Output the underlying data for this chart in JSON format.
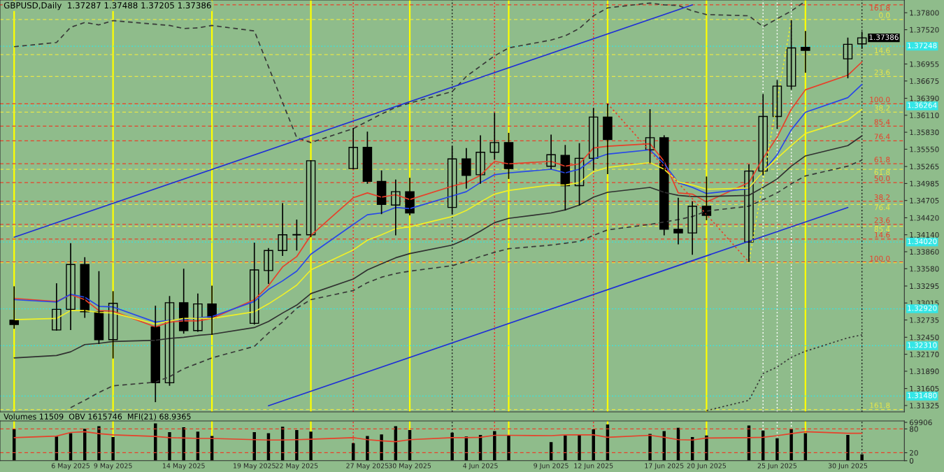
{
  "chart_data": [
    {
      "type": "candlestick",
      "title": "GBPUSD,Daily  1.37287 1.37488 1.37205 1.37386",
      "x": [
        "2025-05-02",
        "2025-05-05",
        "2025-05-06",
        "2025-05-07",
        "2025-05-08",
        "2025-05-09",
        "2025-05-12",
        "2025-05-13",
        "2025-05-14",
        "2025-05-15",
        "2025-05-16",
        "2025-05-19",
        "2025-05-20",
        "2025-05-21",
        "2025-05-22",
        "2025-05-23",
        "2025-05-26",
        "2025-05-27",
        "2025-05-28",
        "2025-05-29",
        "2025-05-30",
        "2025-06-02",
        "2025-06-03",
        "2025-06-04",
        "2025-06-05",
        "2025-06-06",
        "2025-06-09",
        "2025-06-10",
        "2025-06-11",
        "2025-06-12",
        "2025-06-13",
        "2025-06-16",
        "2025-06-17",
        "2025-06-18",
        "2025-06-19",
        "2025-06-20",
        "2025-06-23",
        "2025-06-24",
        "2025-06-25",
        "2025-06-26",
        "2025-06-27",
        "2025-06-30",
        "2025-07-01"
      ],
      "ohlc": [
        [
          1.3273,
          1.3329,
          1.3259,
          1.3266
        ],
        [
          1.3257,
          1.3334,
          1.3256,
          1.3291
        ],
        [
          1.3291,
          1.34,
          1.3257,
          1.3365
        ],
        [
          1.3365,
          1.3377,
          1.3277,
          1.3287
        ],
        [
          1.3287,
          1.3354,
          1.3234,
          1.3241
        ],
        [
          1.3241,
          1.3321,
          1.321,
          1.3301
        ],
        [
          1.3262,
          1.3297,
          1.3138,
          1.317
        ],
        [
          1.317,
          1.3313,
          1.3165,
          1.3302
        ],
        [
          1.3302,
          1.3358,
          1.3251,
          1.3256
        ],
        [
          1.3256,
          1.3317,
          1.3254,
          1.33
        ],
        [
          1.33,
          1.333,
          1.3249,
          1.3277
        ],
        [
          1.3268,
          1.3401,
          1.3266,
          1.3356
        ],
        [
          1.3355,
          1.3392,
          1.3333,
          1.3388
        ],
        [
          1.3388,
          1.3466,
          1.3379,
          1.3414
        ],
        [
          1.3414,
          1.3439,
          1.3388,
          1.3414
        ],
        [
          1.3414,
          1.3537,
          1.341,
          1.3536
        ],
        [
          1.3523,
          1.359,
          1.3522,
          1.3558
        ],
        [
          1.3558,
          1.3584,
          1.3498,
          1.3502
        ],
        [
          1.3502,
          1.352,
          1.3448,
          1.3464
        ],
        [
          1.3463,
          1.3505,
          1.3413,
          1.3485
        ],
        [
          1.3485,
          1.3508,
          1.3446,
          1.345
        ],
        [
          1.3459,
          1.356,
          1.3448,
          1.3539
        ],
        [
          1.3539,
          1.3557,
          1.349,
          1.3512
        ],
        [
          1.3513,
          1.3578,
          1.3498,
          1.355
        ],
        [
          1.355,
          1.3615,
          1.3538,
          1.3566
        ],
        [
          1.3566,
          1.3582,
          1.3506,
          1.3523
        ],
        [
          1.3527,
          1.3579,
          1.3522,
          1.3546
        ],
        [
          1.3545,
          1.3562,
          1.3454,
          1.3495
        ],
        [
          1.3495,
          1.3565,
          1.3462,
          1.354
        ],
        [
          1.354,
          1.3623,
          1.352,
          1.3608
        ],
        [
          1.3608,
          1.363,
          1.3514,
          1.3571
        ],
        [
          1.3554,
          1.3621,
          1.3532,
          1.3574
        ],
        [
          1.3574,
          1.3578,
          1.3413,
          1.3423
        ],
        [
          1.3423,
          1.3475,
          1.3398,
          1.3417
        ],
        [
          1.3417,
          1.3469,
          1.3381,
          1.3461
        ],
        [
          1.3461,
          1.351,
          1.3438,
          1.3446
        ],
        [
          1.3402,
          1.353,
          1.3369,
          1.3519
        ],
        [
          1.3519,
          1.3646,
          1.3512,
          1.3609
        ],
        [
          1.3609,
          1.3669,
          1.3588,
          1.3659
        ],
        [
          1.3659,
          1.3768,
          1.3653,
          1.3722
        ],
        [
          1.3723,
          1.375,
          1.3681,
          1.3718
        ],
        [
          1.3704,
          1.3739,
          1.3672,
          1.3728
        ],
        [
          1.37287,
          1.37488,
          1.37205,
          1.37386
        ]
      ],
      "colors": [
        "#000000",
        "#8fbc8b",
        "#8fbc8b",
        "#000000",
        "#000000",
        "#8fbc8b",
        "#000000",
        "#8fbc8b",
        "#000000",
        "#8fbc8b",
        "#000000",
        "#8fbc8b",
        "#8fbc8b",
        "#8fbc8b",
        "#000000",
        "#8fbc8b",
        "#8fbc8b",
        "#000000",
        "#000000",
        "#8fbc8b",
        "#000000",
        "#8fbc8b",
        "#000000",
        "#8fbc8b",
        "#8fbc8b",
        "#000000",
        "#8fbc8b",
        "#000000",
        "#8fbc8b",
        "#8fbc8b",
        "#000000",
        "#8fbc8b",
        "#000000",
        "#000000",
        "#8fbc8b",
        "#000000",
        "#8fbc8b",
        "#8fbc8b",
        "#8fbc8b",
        "#8fbc8b",
        "#000000",
        "#8fbc8b",
        "#8fbc8b"
      ],
      "series": [
        {
          "type": "line",
          "color": "#e8402a",
          "line_style": "solid",
          "values": [
            1.3309,
            1.3304,
            1.3315,
            1.3307,
            1.3289,
            1.3288,
            1.3262,
            1.327,
            1.3272,
            1.3272,
            1.3276,
            1.3307,
            1.333,
            1.3361,
            1.3378,
            1.3413,
            1.3475,
            1.3483,
            1.3476,
            1.348,
            1.3472,
            1.3494,
            1.35,
            1.3512,
            1.3535,
            1.3531,
            1.3535,
            1.3527,
            1.3531,
            1.3557,
            1.356,
            1.3564,
            1.3535,
            1.3483,
            1.3481,
            1.3468,
            1.35,
            1.354,
            1.3575,
            1.3621,
            1.3653,
            1.3677,
            1.3699
          ]
        },
        {
          "type": "line",
          "color": "#2848e8",
          "line_style": "solid",
          "values": [
            1.3307,
            1.3303,
            1.3316,
            1.3311,
            1.3296,
            1.3295,
            1.327,
            1.3273,
            1.3274,
            1.3277,
            1.3279,
            1.3304,
            1.3324,
            1.3338,
            1.3354,
            1.3382,
            1.3431,
            1.3447,
            1.345,
            1.3459,
            1.3457,
            1.3478,
            1.3485,
            1.35,
            1.3513,
            1.3516,
            1.3522,
            1.3516,
            1.3522,
            1.3539,
            1.3547,
            1.3554,
            1.3531,
            1.35,
            1.3492,
            1.3482,
            1.349,
            1.3518,
            1.3546,
            1.3587,
            1.3616,
            1.364,
            1.3662
          ]
        },
        {
          "type": "line",
          "color": "#f0f028",
          "line_style": "solid",
          "values": [
            1.3274,
            1.3276,
            1.3289,
            1.3289,
            1.3286,
            1.3285,
            1.3267,
            1.3272,
            1.3276,
            1.3276,
            1.3276,
            1.3287,
            1.33,
            1.3315,
            1.3331,
            1.3356,
            1.3389,
            1.3405,
            1.3414,
            1.3424,
            1.3427,
            1.3444,
            1.3454,
            1.3468,
            1.3481,
            1.3487,
            1.3496,
            1.3496,
            1.35,
            1.3518,
            1.3525,
            1.3533,
            1.3522,
            1.3501,
            1.3496,
            1.3489,
            1.3491,
            1.3518,
            1.354,
            1.3561,
            1.3581,
            1.3603,
            1.3621
          ]
        },
        {
          "type": "line",
          "color": "#303030",
          "line_style": "solid",
          "values": [
            1.3211,
            1.3215,
            1.3221,
            1.3233,
            1.3235,
            1.3238,
            1.324,
            1.3243,
            1.3245,
            1.3248,
            1.325,
            1.3261,
            1.3271,
            1.3285,
            1.3298,
            1.3317,
            1.3341,
            1.3356,
            1.3366,
            1.3376,
            1.3383,
            1.3397,
            1.3407,
            1.342,
            1.3434,
            1.3441,
            1.345,
            1.3455,
            1.3463,
            1.3476,
            1.3484,
            1.3492,
            1.3484,
            1.3479,
            1.3477,
            1.3477,
            1.3479,
            1.3492,
            1.3506,
            1.3527,
            1.3544,
            1.3561,
            1.3577
          ]
        },
        {
          "type": "line",
          "color": "#383838",
          "line_style": "dashed",
          "x": [
            "2025-05-06",
            "2025-05-07",
            "2025-05-08",
            "2025-05-09",
            "2025-05-12",
            "2025-05-13",
            "2025-05-14",
            "2025-05-15",
            "2025-05-16",
            "2025-05-19",
            "2025-05-20",
            "2025-05-21",
            "2025-05-22",
            "2025-05-23",
            "2025-05-26",
            "2025-05-27",
            "2025-05-28",
            "2025-05-29",
            "2025-05-30",
            "2025-06-02",
            "2025-06-03",
            "2025-06-04",
            "2025-06-05",
            "2025-06-06",
            "2025-06-09",
            "2025-06-10",
            "2025-06-11",
            "2025-06-12",
            "2025-06-13",
            "2025-06-16",
            "2025-06-17",
            "2025-06-18",
            "2025-06-19",
            "2025-06-20",
            "2025-06-23",
            "2025-06-24",
            "2025-06-25",
            "2025-06-26",
            "2025-06-27",
            "2025-06-30",
            "2025-07-01"
          ],
          "values": [
            1.3129,
            1.3141,
            1.3154,
            1.3165,
            1.3171,
            1.318,
            1.3193,
            1.3202,
            1.3211,
            1.323,
            1.3252,
            1.327,
            1.3293,
            1.3307,
            1.3322,
            1.3335,
            1.3344,
            1.335,
            1.3354,
            1.3363,
            1.337,
            1.3378,
            1.3385,
            1.3391,
            1.3397,
            1.34,
            1.3403,
            1.3413,
            1.3422,
            1.3431,
            1.3435,
            1.3439,
            1.3444,
            1.3453,
            1.3461,
            1.3472,
            1.3483,
            1.3498,
            1.3511,
            1.3527,
            1.3537
          ]
        },
        {
          "type": "line",
          "color": "#383838",
          "line_style": "dashed",
          "x": [
            "2025-05-02",
            "2025-05-05",
            "2025-05-06",
            "2025-05-07",
            "2025-05-08",
            "2025-05-09",
            "2025-05-12",
            "2025-05-13",
            "2025-05-14",
            "2025-05-15",
            "2025-05-16",
            "2025-05-19",
            "2025-05-20",
            "2025-05-21",
            "2025-05-22",
            "2025-05-23",
            "2025-05-26",
            "2025-05-27",
            "2025-05-28",
            "2025-05-29",
            "2025-05-30",
            "2025-06-02",
            "2025-06-03",
            "2025-06-04",
            "2025-06-05",
            "2025-06-06",
            "2025-06-09",
            "2025-06-10",
            "2025-06-11",
            "2025-06-12",
            "2025-06-13",
            "2025-06-16",
            "2025-06-17",
            "2025-06-18",
            "2025-06-19",
            "2025-06-20",
            "2025-06-23",
            "2025-06-24",
            "2025-06-25",
            "2025-06-26",
            "2025-06-27"
          ],
          "values": [
            1.3724,
            1.3731,
            1.3756,
            1.3764,
            1.376,
            1.3767,
            1.3761,
            1.3759,
            1.3754,
            1.3755,
            1.3759,
            1.375,
            1.3691,
            1.3632,
            1.3574,
            1.3566,
            1.3589,
            1.3601,
            1.3613,
            1.3624,
            1.3631,
            1.365,
            1.3675,
            1.3692,
            1.3709,
            1.3722,
            1.3735,
            1.3742,
            1.3754,
            1.3775,
            1.3788,
            1.3796,
            1.3793,
            1.3792,
            1.3783,
            1.3777,
            1.3775,
            1.3757,
            1.377,
            1.3783,
            1.3799
          ]
        },
        {
          "type": "line",
          "color": "#383838",
          "line_style": "dotted",
          "x": [
            "2025-06-20",
            "2025-06-23",
            "2025-06-24",
            "2025-06-25",
            "2025-06-26",
            "2025-06-27",
            "2025-06-30",
            "2025-07-01"
          ],
          "values": [
            1.3124,
            1.3141,
            1.3185,
            1.3196,
            1.3212,
            1.3222,
            1.3244,
            1.3249
          ]
        },
        {
          "type": "line",
          "color": "#1f2fd6",
          "line_style": "solid",
          "x": [
            "2025-05-02",
            "2025-06-19"
          ],
          "values": [
            1.341,
            1.3793
          ]
        },
        {
          "type": "line",
          "color": "#1f2fd6",
          "line_style": "solid",
          "x": [
            "2025-05-20",
            "2025-06-30"
          ],
          "values": [
            1.3132,
            1.3459
          ]
        },
        {
          "type": "line",
          "color": "#e8402a",
          "line_style": "dotted",
          "x": [
            "2025-06-13",
            "2025-06-23"
          ],
          "values": [
            1.363,
            1.3369
          ]
        },
        {
          "type": "line",
          "color": "#f0f028",
          "line_style": "dotted",
          "x": [
            "2025-06-23",
            "2025-06-26"
          ],
          "values": [
            1.3369,
            1.3768
          ]
        }
      ],
      "xlim": [
        "2025-05-01",
        "2025-07-04"
      ],
      "ylim": [
        1.3122,
        1.3801
      ],
      "yticks": [
        {
          "value": 1.378,
          "label": "1.37800"
        },
        {
          "value": 1.3752,
          "label": "1.37520"
        },
        {
          "value": 1.36955,
          "label": "1.36955"
        },
        {
          "value": 1.36675,
          "label": "1.36675"
        },
        {
          "value": 1.3639,
          "label": "1.36390"
        },
        {
          "value": 1.3611,
          "label": "1.36110"
        },
        {
          "value": 1.3583,
          "label": "1.35830"
        },
        {
          "value": 1.3555,
          "label": "1.35550"
        },
        {
          "value": 1.35265,
          "label": "1.35265"
        },
        {
          "value": 1.34985,
          "label": "1.34985"
        },
        {
          "value": 1.34705,
          "label": "1.34705"
        },
        {
          "value": 1.3442,
          "label": "1.34420"
        },
        {
          "value": 1.3414,
          "label": "1.34140"
        },
        {
          "value": 1.3386,
          "label": "1.33860"
        },
        {
          "value": 1.3358,
          "label": "1.33580"
        },
        {
          "value": 1.33295,
          "label": "1.33295"
        },
        {
          "value": 1.33015,
          "label": "1.33015"
        },
        {
          "value": 1.32735,
          "label": "1.32735"
        },
        {
          "value": 1.3245,
          "label": "1.32450"
        },
        {
          "value": 1.3217,
          "label": "1.32170"
        },
        {
          "value": 1.3189,
          "label": "1.31890"
        },
        {
          "value": 1.31605,
          "label": "1.31605"
        },
        {
          "value": 1.31325,
          "label": "1.31325"
        }
      ],
      "xticks": [
        {
          "value": "2025-05-06",
          "label": null
        },
        {
          "value": "2025-05-09",
          "label": null
        },
        {
          "value": "2025-05-14",
          "label": null
        },
        {
          "value": "2025-05-19",
          "label": null
        },
        {
          "value": "2025-05-22",
          "label": null
        },
        {
          "value": "2025-05-27",
          "label": null
        },
        {
          "value": "2025-05-30",
          "label": null
        },
        {
          "value": "2025-06-04",
          "label": null
        },
        {
          "value": "2025-06-09",
          "label": null
        },
        {
          "value": "2025-06-12",
          "label": null
        },
        {
          "value": "2025-06-17",
          "label": null
        },
        {
          "value": "2025-06-20",
          "label": null
        },
        {
          "value": "2025-06-25",
          "label": null
        },
        {
          "value": "2025-06-30",
          "label": null
        }
      ],
      "tick_labels": "y",
      "ref_lines": [
        {
          "axis": "x",
          "value": "2025-05-02",
          "color": "#ffff00",
          "line_style": "solid"
        },
        {
          "axis": "x",
          "value": "2025-05-09",
          "color": "#ffff00",
          "line_style": "solid"
        },
        {
          "axis": "x",
          "value": "2025-05-16",
          "color": "#ffff00",
          "line_style": "solid"
        },
        {
          "axis": "x",
          "value": "2025-05-23",
          "color": "#ffff00",
          "line_style": "solid"
        },
        {
          "axis": "x",
          "value": "2025-05-30",
          "color": "#ffff00",
          "line_style": "solid"
        },
        {
          "axis": "x",
          "value": "2025-06-06",
          "color": "#ffff00",
          "line_style": "solid"
        },
        {
          "axis": "x",
          "value": "2025-06-13",
          "color": "#ffff00",
          "line_style": "solid"
        },
        {
          "axis": "x",
          "value": "2025-06-20",
          "color": "#ffff00",
          "line_style": "solid"
        },
        {
          "axis": "x",
          "value": "2025-06-27",
          "color": "#ffff00",
          "line_style": "solid"
        },
        {
          "axis": "x",
          "value": "2025-05-26",
          "color": "#ff2020",
          "line_style": "dotted"
        },
        {
          "axis": "x",
          "value": "2025-06-05",
          "color": "#ff2020",
          "line_style": "dotted"
        },
        {
          "axis": "x",
          "value": "2025-06-12",
          "color": "#ff2020",
          "line_style": "dotted"
        },
        {
          "axis": "x",
          "value": "2025-06-02",
          "color": "#202020",
          "line_style": "dotted"
        },
        {
          "axis": "x",
          "value": "2025-07-01",
          "color": "#202020",
          "line_style": "dotted"
        },
        {
          "axis": "x",
          "value": "2025-06-24",
          "color": "#ffffff",
          "line_style": "dotted"
        },
        {
          "axis": "x",
          "value": "2025-06-25",
          "color": "#ffffff",
          "line_style": "dotted"
        },
        {
          "axis": "x",
          "value": "2025-06-26",
          "color": "#ffffff",
          "line_style": "dotted"
        },
        {
          "axis": "y",
          "value": 1.3793,
          "color": "#e8402a",
          "line_style": "dashed"
        },
        {
          "axis": "y",
          "value": 1.363,
          "color": "#e8402a",
          "line_style": "dashed"
        },
        {
          "axis": "y",
          "value": 1.3593,
          "color": "#e8402a",
          "line_style": "dashed"
        },
        {
          "axis": "y",
          "value": 1.3569,
          "color": "#e8402a",
          "line_style": "dashed"
        },
        {
          "axis": "y",
          "value": 1.3531,
          "color": "#e8402a",
          "line_style": "dashed"
        },
        {
          "axis": "y",
          "value": 1.35,
          "color": "#e8402a",
          "line_style": "dashed"
        },
        {
          "axis": "y",
          "value": 1.3469,
          "color": "#e8402a",
          "line_style": "dashed"
        },
        {
          "axis": "y",
          "value": 1.3431,
          "color": "#e8402a",
          "line_style": "dashed"
        },
        {
          "axis": "y",
          "value": 1.3407,
          "color": "#e8402a",
          "line_style": "dashed"
        },
        {
          "axis": "y",
          "value": 1.3369,
          "color": "#e8402a",
          "line_style": "dashed"
        },
        {
          "axis": "y",
          "value": 1.3769,
          "color": "#e6e64a",
          "line_style": "dashed"
        },
        {
          "axis": "y",
          "value": 1.3711,
          "color": "#e6e64a",
          "line_style": "dashed"
        },
        {
          "axis": "y",
          "value": 1.3675,
          "color": "#e6e64a",
          "line_style": "dashed"
        },
        {
          "axis": "y",
          "value": 1.3616,
          "color": "#e6e64a",
          "line_style": "dashed"
        },
        {
          "axis": "y",
          "value": 1.3522,
          "color": "#e6e64a",
          "line_style": "dashed"
        },
        {
          "axis": "y",
          "value": 1.3464,
          "color": "#e6e64a",
          "line_style": "dashed"
        },
        {
          "axis": "y",
          "value": 1.3428,
          "color": "#e6e64a",
          "line_style": "dashed"
        },
        {
          "axis": "y",
          "value": 1.3368,
          "color": "#e6e64a",
          "line_style": "dashed"
        },
        {
          "axis": "y",
          "value": 1.3126,
          "color": "#e6e64a",
          "line_style": "dashed"
        },
        {
          "axis": "y",
          "value": 1.37248,
          "label": "1.37248",
          "color": "#33e6e6",
          "line_style": "dotted"
        },
        {
          "axis": "y",
          "value": 1.36264,
          "label": "1.36264",
          "color": "#33e6e6",
          "line_style": "dotted"
        },
        {
          "axis": "y",
          "value": 1.3402,
          "label": "1.34020",
          "color": "#33e6e6",
          "line_style": "dotted"
        },
        {
          "axis": "y",
          "value": 1.3292,
          "label": "1.32920",
          "color": "#33e6e6",
          "line_style": "dotted"
        },
        {
          "axis": "y",
          "value": 1.3231,
          "label": "1.32310",
          "color": "#33e6e6",
          "line_style": "dotted"
        },
        {
          "axis": "y",
          "value": 1.3148,
          "label": "1.31480",
          "color": "#33e6e6",
          "line_style": "dotted"
        }
      ],
      "annotations": [
        {
          "text": "161.8",
          "x": "2025-07-03",
          "y": 1.3793
        },
        {
          "text": "100.0",
          "x": "2025-07-03",
          "y": 1.363
        },
        {
          "text": "85.4",
          "x": "2025-07-03",
          "y": 1.3593
        },
        {
          "text": "76.4",
          "x": "2025-07-03",
          "y": 1.3569
        },
        {
          "text": "61.8",
          "x": "2025-07-03",
          "y": 1.3531
        },
        {
          "text": "50.0",
          "x": "2025-07-03",
          "y": 1.35
        },
        {
          "text": "38.2",
          "x": "2025-07-03",
          "y": 1.3469
        },
        {
          "text": "23.6",
          "x": "2025-07-03",
          "y": 1.3431
        },
        {
          "text": "14.6",
          "x": "2025-07-03",
          "y": 1.3407
        },
        {
          "text": "0.0",
          "x": "2025-07-03",
          "y": 1.3769
        },
        {
          "text": "14.6",
          "x": "2025-07-03",
          "y": 1.3711
        },
        {
          "text": "23.6",
          "x": "2025-07-03",
          "y": 1.3675
        },
        {
          "text": "38.2",
          "x": "2025-07-03",
          "y": 1.3616
        },
        {
          "text": "61.8",
          "x": "2025-07-03",
          "y": 1.3522
        },
        {
          "text": "76.4",
          "x": "2025-07-03",
          "y": 1.3464
        },
        {
          "text": "85.4",
          "x": "2025-07-03",
          "y": 1.3428
        },
        {
          "text": "100.0",
          "x": "2025-07-03",
          "y": 1.3368
        },
        {
          "text": "161.8",
          "x": "2025-07-03",
          "y": 1.3126
        },
        {
          "text": "1.37386",
          "x": "2025-07-01",
          "y": 1.37386
        }
      ]
    },
    {
      "type": "bar",
      "title": "Volumes 11509  OBV 1615746  MFI(21) 68.9365",
      "x": [
        "2025-05-02",
        "2025-05-05",
        "2025-05-06",
        "2025-05-07",
        "2025-05-08",
        "2025-05-09",
        "2025-05-12",
        "2025-05-13",
        "2025-05-14",
        "2025-05-15",
        "2025-05-16",
        "2025-05-19",
        "2025-05-20",
        "2025-05-21",
        "2025-05-22",
        "2025-05-23",
        "2025-05-26",
        "2025-05-27",
        "2025-05-28",
        "2025-05-29",
        "2025-05-30",
        "2025-06-02",
        "2025-06-03",
        "2025-06-04",
        "2025-06-05",
        "2025-06-06",
        "2025-06-09",
        "2025-06-10",
        "2025-06-11",
        "2025-06-12",
        "2025-06-13",
        "2025-06-16",
        "2025-06-17",
        "2025-06-18",
        "2025-06-19",
        "2025-06-20",
        "2025-06-23",
        "2025-06-24",
        "2025-06-25",
        "2025-06-26",
        "2025-06-27",
        "2025-06-30",
        "2025-07-01"
      ],
      "series": [
        {
          "type": "bar",
          "axis": "y2",
          "color": "#000000",
          "values": [
            57000,
            44000,
            50000,
            58000,
            63000,
            43000,
            68000,
            52000,
            61000,
            53000,
            45000,
            52000,
            50000,
            62000,
            56000,
            53000,
            32000,
            45000,
            48000,
            63000,
            56000,
            51000,
            44000,
            47000,
            54000,
            46000,
            34000,
            46000,
            48000,
            57000,
            66000,
            49000,
            54000,
            60000,
            43000,
            46000,
            64000,
            55000,
            41000,
            58000,
            50000,
            47000,
            11509
          ]
        },
        {
          "type": "line",
          "color": "#e8402a",
          "line_style": "solid",
          "values": [
            58,
            62,
            71,
            73,
            68,
            65,
            61,
            58,
            57,
            56,
            56,
            53,
            52,
            52,
            53,
            54,
            58,
            53,
            50,
            48,
            53,
            58,
            58,
            59,
            64,
            64,
            63,
            65,
            65,
            65,
            59,
            64,
            59,
            53,
            52,
            57,
            58,
            59,
            63,
            68,
            73,
            69,
            69
          ]
        }
      ],
      "xlim": [
        "2025-05-01",
        "2025-07-04"
      ],
      "ylim": [
        0,
        100
      ],
      "yticks": [
        0,
        20,
        80
      ],
      "y2lim": [
        0,
        72400
      ],
      "y2ticks": [
        69906
      ],
      "xticks": [
        {
          "value": "2025-05-06",
          "label": "6 May 2025"
        },
        {
          "value": "2025-05-09",
          "label": "9 May 2025"
        },
        {
          "value": "2025-05-14",
          "label": "14 May 2025"
        },
        {
          "value": "2025-05-19",
          "label": "19 May 2025"
        },
        {
          "value": "2025-05-22",
          "label": "22 May 2025"
        },
        {
          "value": "2025-05-27",
          "label": "27 May 2025"
        },
        {
          "value": "2025-05-30",
          "label": "30 May 2025"
        },
        {
          "value": "2025-06-04",
          "label": "4 Jun 2025"
        },
        {
          "value": "2025-06-09",
          "label": "9 Jun 2025"
        },
        {
          "value": "2025-06-12",
          "label": "12 Jun 2025"
        },
        {
          "value": "2025-06-17",
          "label": "17 Jun 2025"
        },
        {
          "value": "2025-06-20",
          "label": "20 Jun 2025"
        },
        {
          "value": "2025-06-25",
          "label": "25 Jun 2025"
        },
        {
          "value": "2025-06-30",
          "label": "30 Jun 2025"
        }
      ],
      "ref_lines": [
        {
          "axis": "y",
          "value": 80,
          "color": "#e8402a",
          "line_style": "dashed"
        },
        {
          "axis": "y",
          "value": 20,
          "color": "#e8402a",
          "line_style": "dashed"
        },
        {
          "axis": "x",
          "value": "2025-05-02",
          "color": "#ffff00",
          "line_style": "solid"
        },
        {
          "axis": "x",
          "value": "2025-05-09",
          "color": "#ffff00",
          "line_style": "solid"
        },
        {
          "axis": "x",
          "value": "2025-05-16",
          "color": "#ffff00",
          "line_style": "solid"
        },
        {
          "axis": "x",
          "value": "2025-05-23",
          "color": "#ffff00",
          "line_style": "solid"
        },
        {
          "axis": "x",
          "value": "2025-05-30",
          "color": "#ffff00",
          "line_style": "solid"
        },
        {
          "axis": "x",
          "value": "2025-06-06",
          "color": "#ffff00",
          "line_style": "solid"
        },
        {
          "axis": "x",
          "value": "2025-06-13",
          "color": "#ffff00",
          "line_style": "solid"
        },
        {
          "axis": "x",
          "value": "2025-06-20",
          "color": "#ffff00",
          "line_style": "solid"
        },
        {
          "axis": "x",
          "value": "2025-06-27",
          "color": "#ffff00",
          "line_style": "solid"
        },
        {
          "axis": "x",
          "value": "2025-05-26",
          "color": "#ff2020",
          "line_style": "dotted"
        },
        {
          "axis": "x",
          "value": "2025-06-05",
          "color": "#ff2020",
          "line_style": "dotted"
        },
        {
          "axis": "x",
          "value": "2025-06-12",
          "color": "#ff2020",
          "line_style": "dotted"
        },
        {
          "axis": "x",
          "value": "2025-06-02",
          "color": "#202020",
          "line_style": "dotted"
        },
        {
          "axis": "x",
          "value": "2025-07-01",
          "color": "#202020",
          "line_style": "dotted"
        },
        {
          "axis": "x",
          "value": "2025-06-24",
          "color": "#ffffff",
          "line_style": "dotted"
        },
        {
          "axis": "x",
          "value": "2025-06-25",
          "color": "#ffffff",
          "line_style": "dotted"
        },
        {
          "axis": "x",
          "value": "2025-06-26",
          "color": "#ffffff",
          "line_style": "dotted"
        }
      ]
    }
  ]
}
